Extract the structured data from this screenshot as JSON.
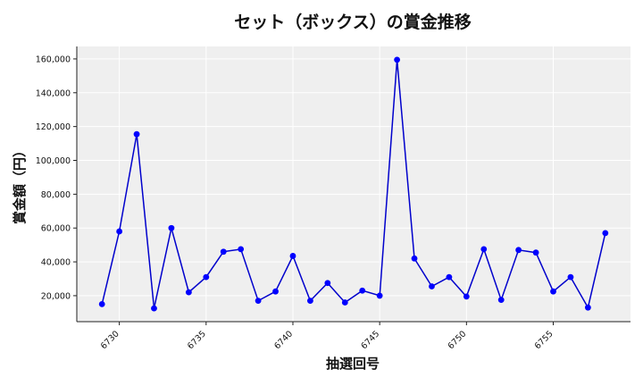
{
  "chart_data": {
    "type": "line",
    "title": "セット（ボックス）の賞金推移",
    "xlabel": "抽選回号",
    "ylabel": "賞金額（円）",
    "x": [
      6729,
      6730,
      6731,
      6732,
      6733,
      6734,
      6735,
      6736,
      6737,
      6738,
      6739,
      6740,
      6741,
      6742,
      6743,
      6744,
      6745,
      6746,
      6747,
      6748,
      6749,
      6750,
      6751,
      6752,
      6753,
      6754,
      6755,
      6756,
      6757,
      6758
    ],
    "series": [
      {
        "values": [
          15000,
          58000,
          115500,
          12500,
          60000,
          22000,
          31000,
          46000,
          47500,
          17000,
          22500,
          43500,
          17000,
          27500,
          16000,
          23000,
          20000,
          159500,
          42000,
          25500,
          31000,
          19500,
          47500,
          17500,
          47000,
          45500,
          22500,
          31000,
          13000,
          57000
        ]
      }
    ],
    "xticks": [
      6730,
      6735,
      6740,
      6745,
      6750,
      6755
    ],
    "yticks": [
      20000,
      40000,
      60000,
      80000,
      100000,
      120000,
      140000,
      160000
    ],
    "xlim": [
      6727.55,
      6759.45
    ],
    "ylim": [
      4640,
      167360
    ],
    "grid": true,
    "colors": {
      "line": "#0000cc",
      "marker": "#0000ff",
      "plot_bg": "#efefef",
      "grid": "#ffffff"
    }
  }
}
